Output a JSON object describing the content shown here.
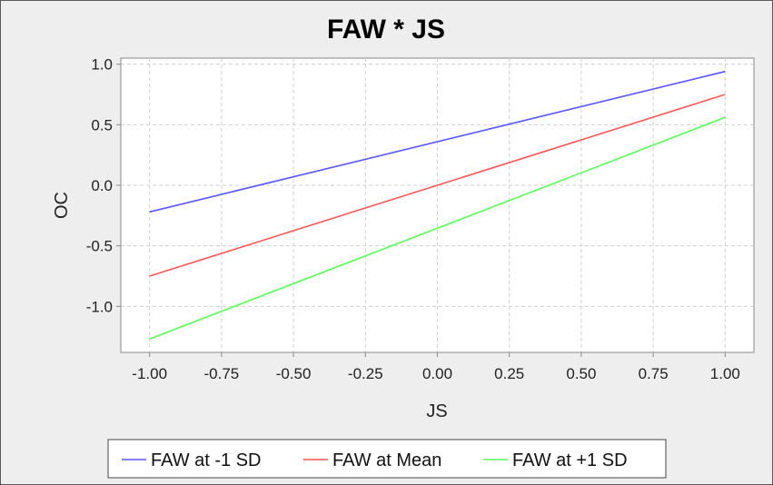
{
  "chart_data": {
    "type": "line",
    "title": "FAW * JS",
    "xlabel": "JS",
    "ylabel": "OC",
    "xlim": [
      -1.1,
      1.1
    ],
    "ylim": [
      -1.38,
      1.05
    ],
    "xticks": [
      "-1.00",
      "-0.75",
      "-0.50",
      "-0.25",
      "0.00",
      "0.25",
      "0.50",
      "0.75",
      "1.00"
    ],
    "yticks": [
      "1.0",
      "0.5",
      "0.0",
      "-0.5",
      "-1.0"
    ],
    "grid": true,
    "legend_position": "bottom",
    "series": [
      {
        "name": "FAW at -1 SD",
        "color": "#5555ff",
        "x": [
          -1.0,
          1.0
        ],
        "y": [
          -0.22,
          0.94
        ]
      },
      {
        "name": "FAW at Mean",
        "color": "#ff5555",
        "x": [
          -1.0,
          1.0
        ],
        "y": [
          -0.75,
          0.75
        ]
      },
      {
        "name": "FAW at +1 SD",
        "color": "#55ff55",
        "x": [
          -1.0,
          1.0
        ],
        "y": [
          -1.27,
          0.56
        ]
      }
    ]
  }
}
